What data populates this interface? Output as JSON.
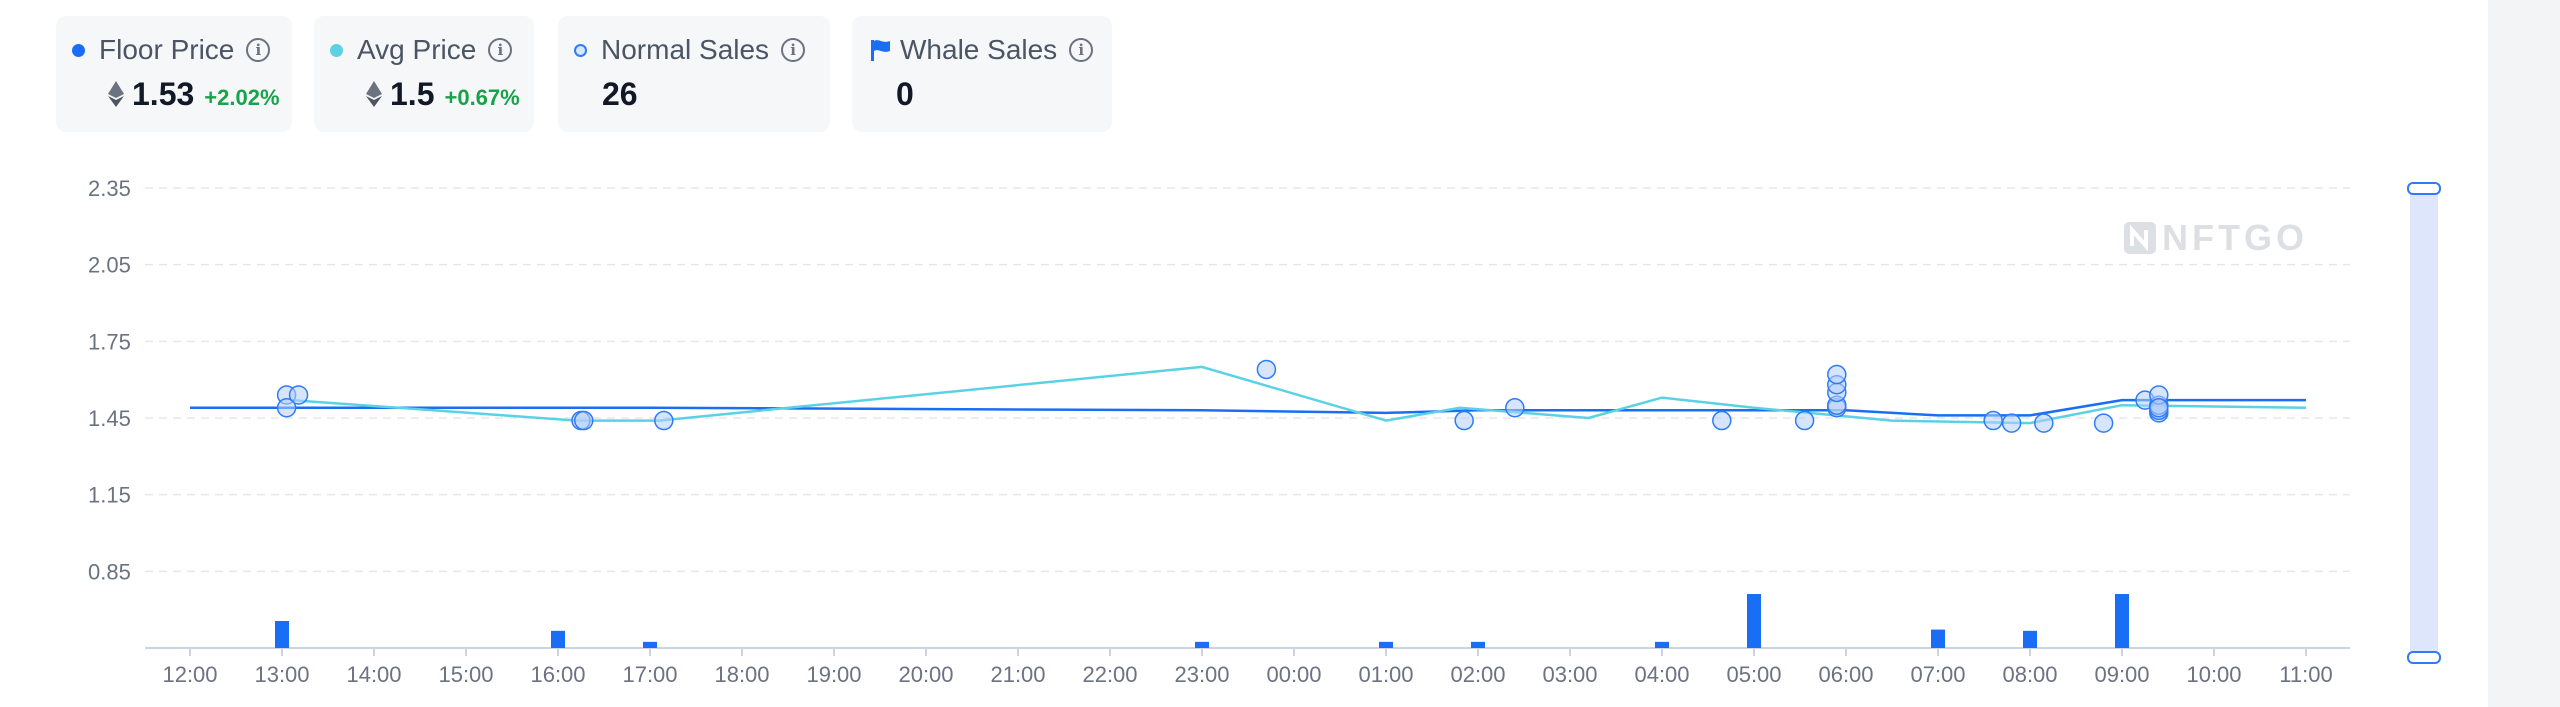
{
  "cards": {
    "floor": {
      "label": "Floor Price",
      "value": "1.53",
      "change": "+2.02%",
      "color": "#1a6ef5"
    },
    "avg": {
      "label": "Avg Price",
      "value": "1.5",
      "change": "+0.67%",
      "color": "#5bd2e3"
    },
    "normal": {
      "label": "Normal Sales",
      "value": "26"
    },
    "whale": {
      "label": "Whale Sales",
      "value": "0"
    }
  },
  "watermark": "NFTGO",
  "chart_data": {
    "type": "line",
    "x_ticks": [
      "12:00",
      "13:00",
      "14:00",
      "15:00",
      "16:00",
      "17:00",
      "18:00",
      "19:00",
      "20:00",
      "21:00",
      "22:00",
      "23:00",
      "00:00",
      "01:00",
      "02:00",
      "03:00",
      "04:00",
      "05:00",
      "06:00",
      "07:00",
      "08:00",
      "09:00",
      "10:00",
      "11:00"
    ],
    "y_ticks": [
      "2.35",
      "2.05",
      "1.75",
      "1.45",
      "1.15",
      "0.85"
    ],
    "ylim": [
      0.55,
      2.35
    ],
    "grid": true,
    "legend": "top",
    "series": [
      {
        "name": "Floor Price",
        "color": "#1a6ef5",
        "points": [
          [
            0,
            1.49
          ],
          [
            5,
            1.49
          ],
          [
            11,
            1.48
          ],
          [
            13,
            1.47
          ],
          [
            14,
            1.48
          ],
          [
            16,
            1.48
          ],
          [
            18,
            1.48
          ],
          [
            19,
            1.46
          ],
          [
            20,
            1.46
          ],
          [
            21,
            1.52
          ],
          [
            23,
            1.52
          ]
        ]
      },
      {
        "name": "Avg Price",
        "color": "#5bd2e3",
        "points": [
          [
            1.1,
            1.52
          ],
          [
            4.2,
            1.44
          ],
          [
            5.1,
            1.44
          ],
          [
            11,
            1.65
          ],
          [
            13,
            1.44
          ],
          [
            13.8,
            1.49
          ],
          [
            15.2,
            1.45
          ],
          [
            16,
            1.53
          ],
          [
            17,
            1.49
          ],
          [
            18.5,
            1.44
          ],
          [
            20.0,
            1.43
          ],
          [
            21,
            1.5
          ],
          [
            23,
            1.49
          ]
        ]
      },
      {
        "name": "Normal Sales",
        "color": "#2e7cf6",
        "points": [
          [
            1.05,
            1.54
          ],
          [
            1.18,
            1.54
          ],
          [
            1.05,
            1.49
          ],
          [
            4.25,
            1.44
          ],
          [
            4.28,
            1.44
          ],
          [
            5.15,
            1.44
          ],
          [
            11.7,
            1.64
          ],
          [
            13.85,
            1.44
          ],
          [
            14.4,
            1.49
          ],
          [
            16.65,
            1.44
          ],
          [
            17.55,
            1.44
          ],
          [
            17.9,
            1.49
          ],
          [
            17.9,
            1.5
          ],
          [
            17.9,
            1.55
          ],
          [
            17.9,
            1.58
          ],
          [
            17.9,
            1.62
          ],
          [
            19.6,
            1.44
          ],
          [
            19.8,
            1.43
          ],
          [
            20.15,
            1.43
          ],
          [
            20.8,
            1.43
          ],
          [
            21.25,
            1.52
          ],
          [
            21.4,
            1.47
          ],
          [
            21.4,
            1.48
          ],
          [
            21.4,
            1.5
          ],
          [
            21.4,
            1.54
          ],
          [
            21.4,
            1.49
          ]
        ]
      }
    ],
    "volume": {
      "name": "Volume",
      "color": "#1a6ef5",
      "bars": [
        [
          1,
          0.22
        ],
        [
          4,
          0.14
        ],
        [
          5,
          0.05
        ],
        [
          11,
          0.05
        ],
        [
          13,
          0.05
        ],
        [
          14,
          0.05
        ],
        [
          16,
          0.05
        ],
        [
          17,
          0.44
        ],
        [
          19,
          0.15
        ],
        [
          20,
          0.14
        ],
        [
          21,
          0.44
        ]
      ]
    }
  }
}
